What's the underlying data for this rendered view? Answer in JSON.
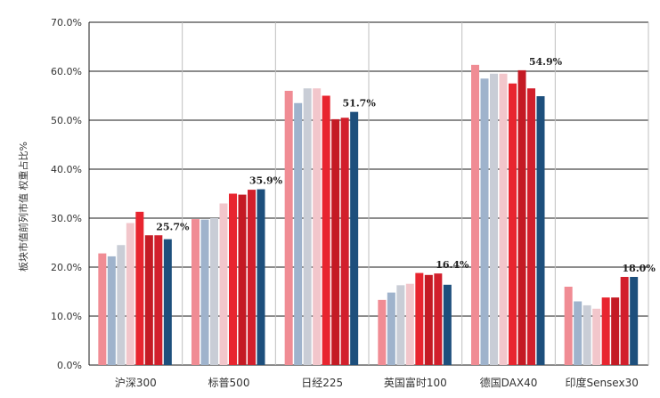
{
  "chart_data": {
    "type": "bar",
    "title": "",
    "xlabel": "",
    "ylabel": "板块市值前列市值 权重占比%",
    "ylim": [
      0,
      70
    ],
    "yticks": [
      0,
      10,
      20,
      30,
      40,
      50,
      60,
      70
    ],
    "ytick_labels": [
      "0.0%",
      "10.0%",
      "20.0%",
      "30.0%",
      "40.0%",
      "50.0%",
      "60.0%",
      "70.0%"
    ],
    "grid": true,
    "legend": "none",
    "categories": [
      "沪深300",
      "标普500",
      "日经225",
      "英国富时100",
      "德国DAX40",
      "印度Sensex30"
    ],
    "series_colors": [
      "#f08c94",
      "#9fb3cc",
      "#c9cdd6",
      "#f2c6cb",
      "#e8252f",
      "#c41a24",
      "#d21f2c",
      "#1d4f7c"
    ],
    "values": [
      [
        22.8,
        22.2,
        24.5,
        29.0,
        31.3,
        26.5,
        26.5,
        25.7
      ],
      [
        29.8,
        29.7,
        30.0,
        33.0,
        35.0,
        34.8,
        35.8,
        35.9
      ],
      [
        56.0,
        53.5,
        56.5,
        56.5,
        55.0,
        50.2,
        50.5,
        51.7
      ],
      [
        13.3,
        14.8,
        16.3,
        16.6,
        18.8,
        18.4,
        18.7,
        16.4
      ],
      [
        61.3,
        58.5,
        59.5,
        59.5,
        57.5,
        60.2,
        56.5,
        54.9
      ],
      [
        16.0,
        13.0,
        12.2,
        11.5,
        13.8,
        13.8,
        18.0,
        18.0
      ]
    ],
    "data_labels": [
      "25.7%",
      "35.9%",
      "51.7%",
      "16.4%",
      "54.9%",
      "18.0%"
    ]
  }
}
